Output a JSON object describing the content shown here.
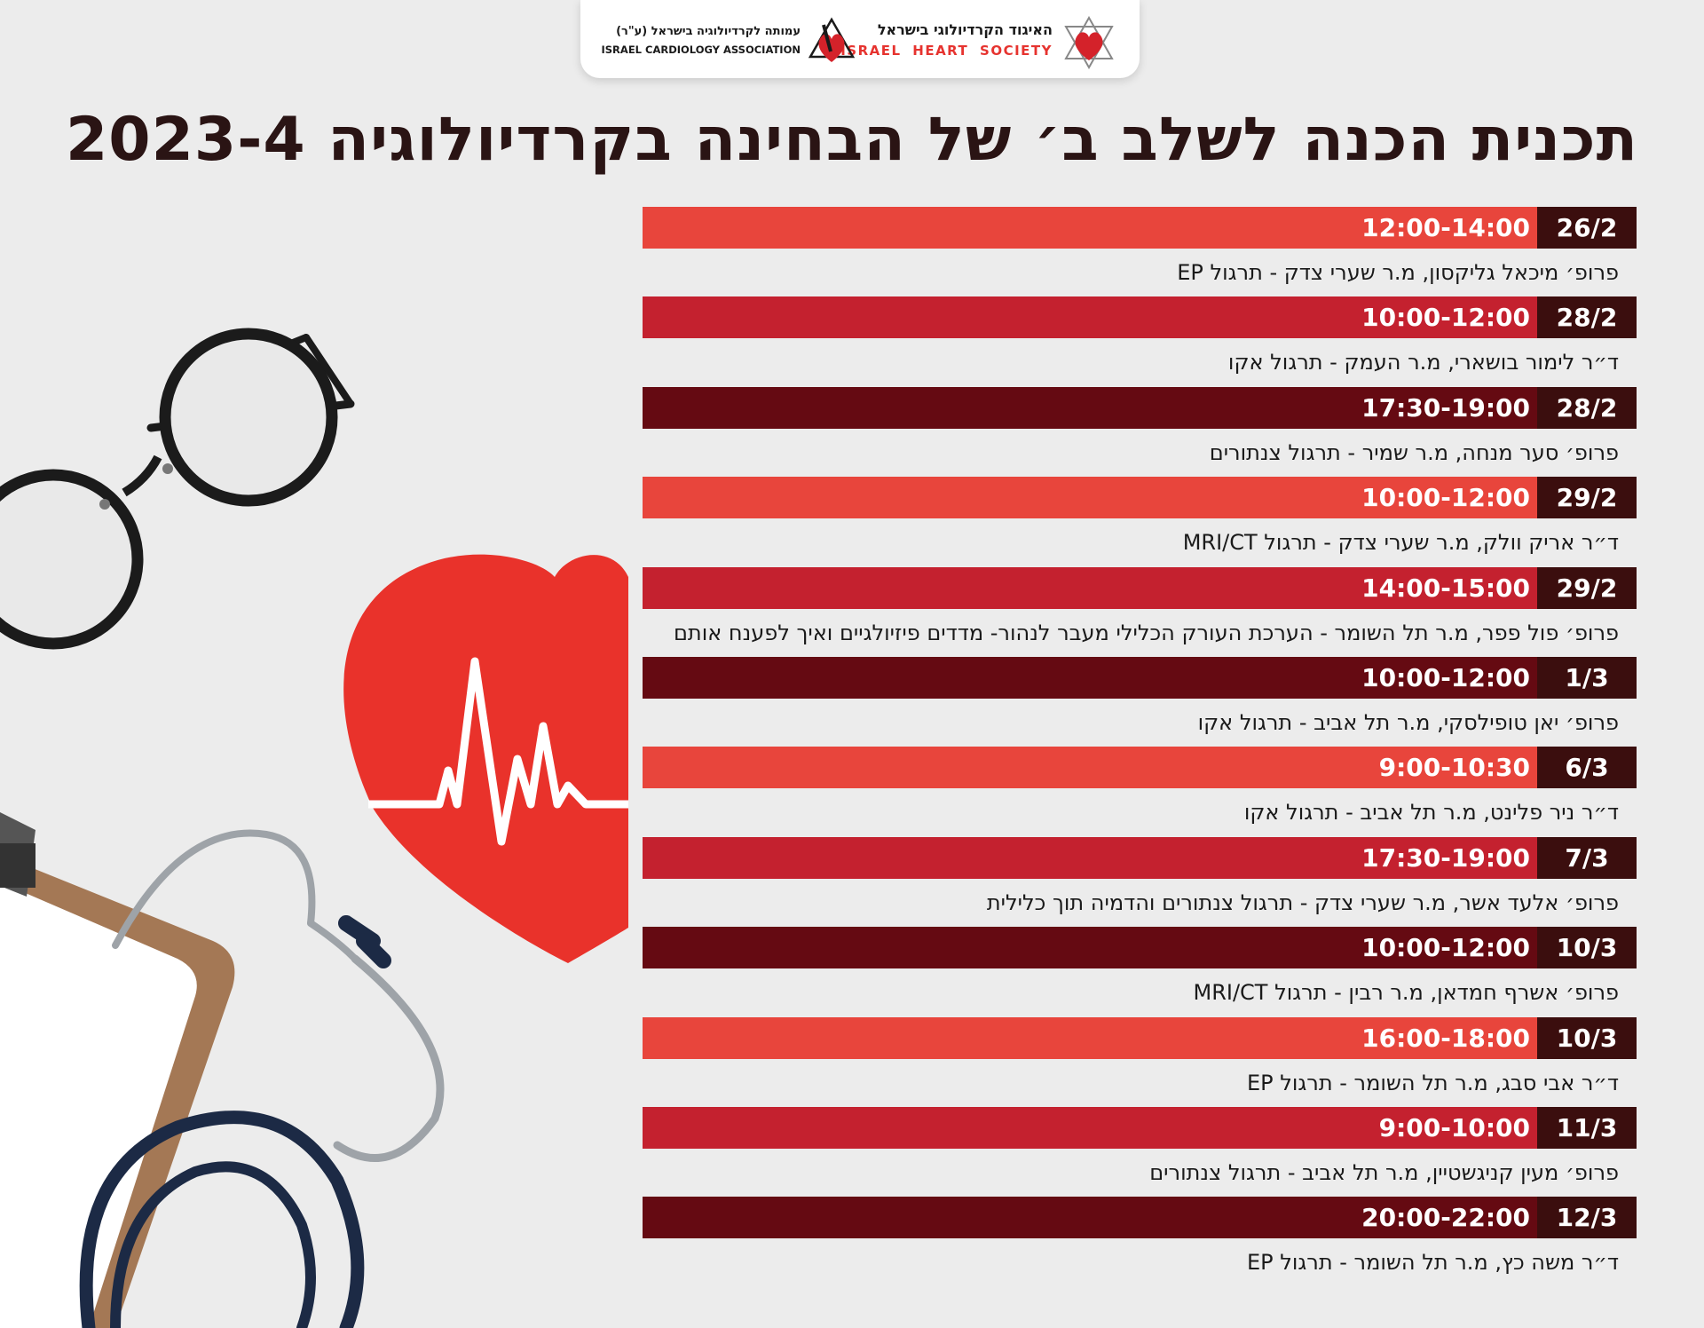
{
  "logos": {
    "heart_society": {
      "hebrew": "האיגוד הקרדיולוגי בישראל",
      "english": "ISRAEL HEART SOCIETY"
    },
    "cardiology_association": {
      "hebrew": "עמותה לקרדיולוגיה בישראל (ע\"ר)",
      "english": "ISRAEL CARDIOLOGY ASSOCIATION"
    }
  },
  "title": "תכנית הכנה לשלב ב׳ של הבחינה בקרדיולוגיה 2023-4",
  "colors": {
    "light_red": "#e8453c",
    "mid_red": "#c4212f",
    "dark_red": "#650a12",
    "date_cell": "#3b0e0e",
    "heart_red": "#e9322b"
  },
  "sessions": [
    {
      "date": "26/2",
      "time": "12:00-14:00",
      "description": "פרופ׳ מיכאל גליקסון, מ.ר שערי צדק - תרגול EP",
      "color": "#e8453c"
    },
    {
      "date": "28/2",
      "time": "10:00-12:00",
      "description": "ד״ר לימור בושארי, מ.ר העמק - תרגול אקו",
      "color": "#c4212f"
    },
    {
      "date": "28/2",
      "time": "17:30-19:00",
      "description": "פרופ׳ סער מנחה, מ.ר שמיר - תרגול צנתורים",
      "color": "#650a12"
    },
    {
      "date": "29/2",
      "time": "10:00-12:00",
      "description": "ד״ר אריק וולק, מ.ר שערי צדק - תרגול MRI/CT",
      "color": "#e8453c"
    },
    {
      "date": "29/2",
      "time": "14:00-15:00",
      "description": "פרופ׳ פול פפר, מ.ר תל השומר - הערכת העורק הכלילי מעבר לנהור- מדדים פיזיולגיים ואיך לפענח אותם",
      "color": "#c4212f"
    },
    {
      "date": "1/3",
      "time": "10:00-12:00",
      "description": "פרופ׳ יאן טופילסקי, מ.ר תל אביב - תרגול אקו",
      "color": "#650a12"
    },
    {
      "date": "6/3",
      "time": "9:00-10:30",
      "description": "ד״ר ניר פלינט, מ.ר תל אביב - תרגול אקו",
      "color": "#e8453c"
    },
    {
      "date": "7/3",
      "time": "17:30-19:00",
      "description": "פרופ׳ אלעד אשר, מ.ר שערי צדק - תרגול צנתורים והדמיה תוך כלילית",
      "color": "#c4212f"
    },
    {
      "date": "10/3",
      "time": "10:00-12:00",
      "description": "פרופ׳ אשרף חמדאן, מ.ר רבין - תרגול MRI/CT",
      "color": "#650a12"
    },
    {
      "date": "10/3",
      "time": "16:00-18:00",
      "description": "ד״ר אבי סבג, מ.ר תל השומר - תרגול EP",
      "color": "#e8453c"
    },
    {
      "date": "11/3",
      "time": "9:00-10:00",
      "description": "פרופ׳ מעין קניגשטיין, מ.ר תל אביב - תרגול צנתורים",
      "color": "#c4212f"
    },
    {
      "date": "12/3",
      "time": "20:00-22:00",
      "description": "ד״ר משה כץ, מ.ר תל השומר - תרגול EP",
      "color": "#650a12"
    }
  ],
  "illustration": {
    "items": [
      "glasses-icon",
      "heart-ecg-icon",
      "stethoscope-icon",
      "clipboard-icon"
    ]
  }
}
